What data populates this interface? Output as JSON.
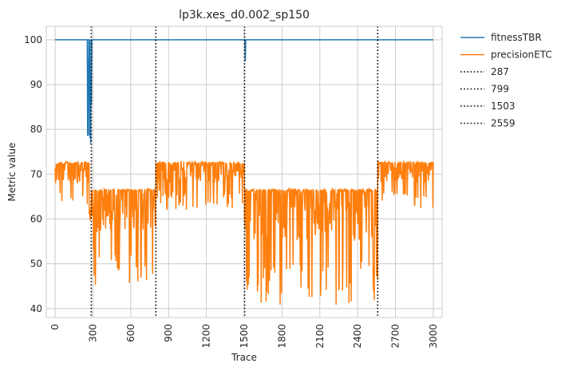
{
  "chart_data": {
    "type": "line",
    "title": "lp3k.xes_d0.002_sp150",
    "xlabel": "Trace",
    "ylabel": "Metric value",
    "xlim": [
      -70,
      3070
    ],
    "ylim": [
      38,
      103
    ],
    "x_ticks": [
      0,
      300,
      600,
      900,
      1200,
      1500,
      1800,
      2100,
      2400,
      2700,
      3000
    ],
    "y_ticks": [
      40,
      50,
      60,
      70,
      80,
      90,
      100
    ],
    "grid": true,
    "legend_position": "outside-top-right",
    "series": [
      {
        "name": "fitnessTBR",
        "color": "#1f77b4",
        "style": "solid",
        "segments": [
          {
            "x_start": 0,
            "x_end": 3000,
            "baseline": 100
          },
          {
            "x_start": 255,
            "x_end": 290,
            "low": 76,
            "high": 100
          },
          {
            "x_start": 1500,
            "x_end": 1510,
            "low": 91,
            "high": 100
          }
        ]
      },
      {
        "name": "precisionETC",
        "color": "#ff7f0e",
        "style": "solid",
        "segments": [
          {
            "x_start": 0,
            "x_end": 270,
            "high": 72.8,
            "low": 62
          },
          {
            "x_start": 270,
            "x_end": 287,
            "high": 62,
            "low": 54.5
          },
          {
            "x_start": 287,
            "x_end": 799,
            "high": 66.7,
            "low": 45
          },
          {
            "x_start": 799,
            "x_end": 1503,
            "high": 72.8,
            "low": 62
          },
          {
            "x_start": 1503,
            "x_end": 2559,
            "high": 66.7,
            "low": 40.8
          },
          {
            "x_start": 2559,
            "x_end": 3000,
            "high": 72.8,
            "low": 62
          }
        ]
      }
    ],
    "vlines": [
      {
        "name": "287",
        "x": 287,
        "color": "#000000",
        "style": "dotted"
      },
      {
        "name": "799",
        "x": 799,
        "color": "#000000",
        "style": "dotted"
      },
      {
        "name": "1503",
        "x": 1503,
        "color": "#000000",
        "style": "dotted"
      },
      {
        "name": "2559",
        "x": 2559,
        "color": "#000000",
        "style": "dotted"
      }
    ],
    "colors": {
      "grid": "#cccccc",
      "text": "#262626",
      "frame": "#cccccc"
    }
  }
}
